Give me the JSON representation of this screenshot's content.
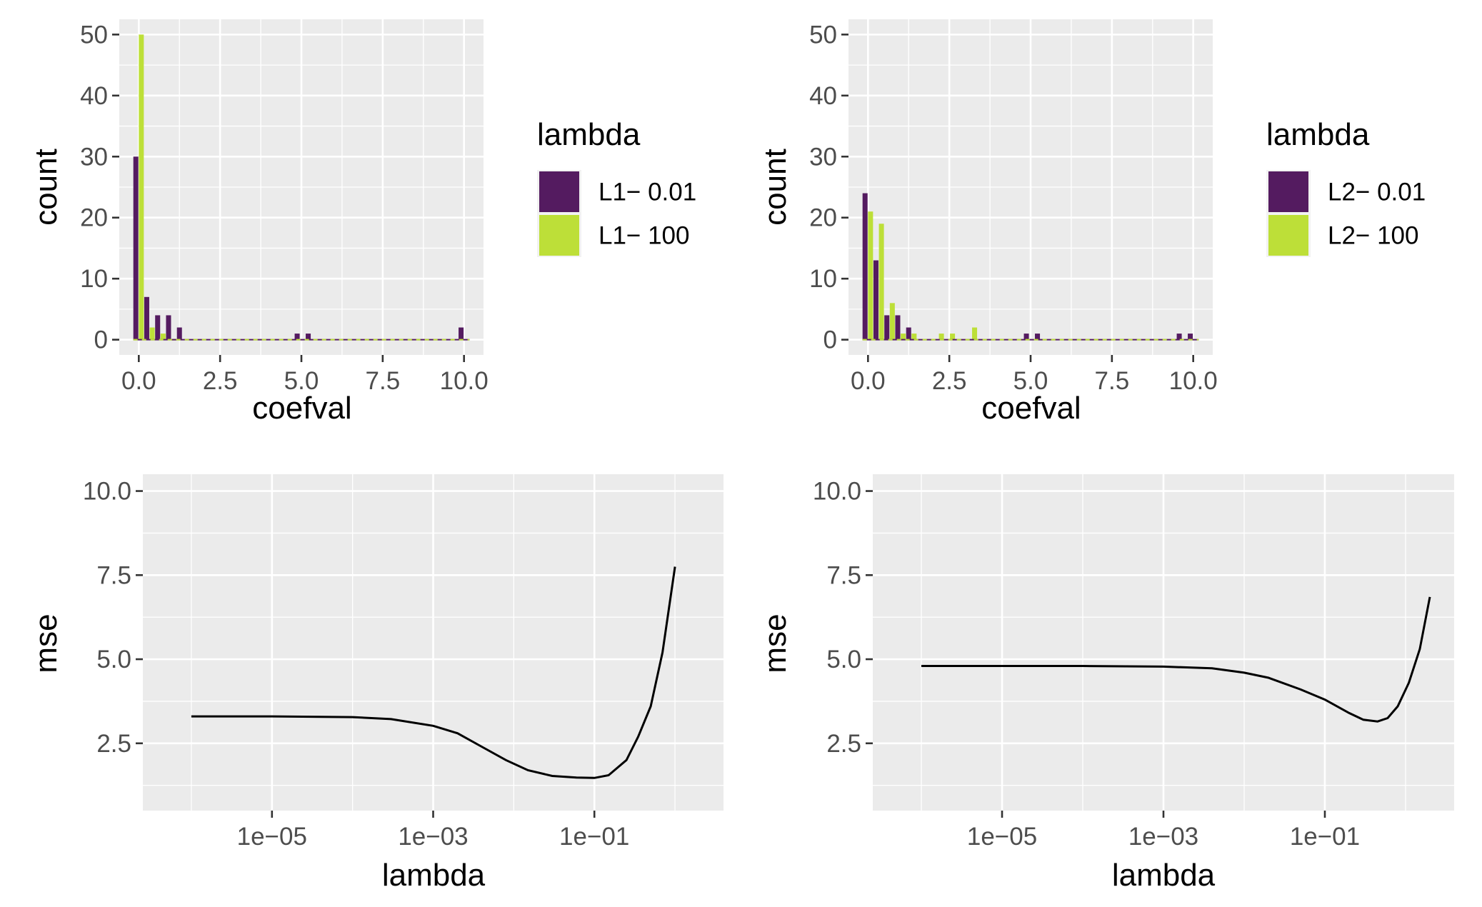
{
  "chart_data": [
    {
      "id": "hist-l1",
      "type": "bar",
      "xlabel": "coefval",
      "ylabel": "count",
      "xlim": [
        -0.6,
        10.6
      ],
      "ylim": [
        -2.5,
        52.5
      ],
      "xticks": [
        0,
        2.5,
        5,
        7.5,
        10
      ],
      "xtick_labels": [
        "0.0",
        "2.5",
        "5.0",
        "7.5",
        "10.0"
      ],
      "yticks": [
        0,
        10,
        20,
        30,
        40,
        50
      ],
      "ytick_labels": [
        "0",
        "10",
        "20",
        "30",
        "40",
        "50"
      ],
      "bin_width": 0.335,
      "grid": true,
      "legend": {
        "title": "lambda",
        "placement": "right"
      },
      "series": [
        {
          "name": "L1− 0.01",
          "color": "#541B60",
          "x": [
            0,
            0.335,
            0.67,
            1.005,
            1.34,
            4.96,
            5.3,
            10.0
          ],
          "values": [
            30,
            7,
            4,
            4,
            2,
            1,
            1,
            2
          ]
        },
        {
          "name": "L1− 100",
          "color": "#BDDF38",
          "x": [
            0,
            0.335,
            0.67,
            1.005
          ],
          "values": [
            50,
            2,
            1,
            0
          ]
        }
      ]
    },
    {
      "id": "hist-l2",
      "type": "bar",
      "xlabel": "coefval",
      "ylabel": "count",
      "xlim": [
        -0.6,
        10.6
      ],
      "ylim": [
        -2.5,
        52.5
      ],
      "xticks": [
        0,
        2.5,
        5,
        7.5,
        10
      ],
      "xtick_labels": [
        "0.0",
        "2.5",
        "5.0",
        "7.5",
        "10.0"
      ],
      "yticks": [
        0,
        10,
        20,
        30,
        40,
        50
      ],
      "ytick_labels": [
        "0",
        "10",
        "20",
        "30",
        "40",
        "50"
      ],
      "bin_width": 0.335,
      "grid": true,
      "legend": {
        "title": "lambda",
        "placement": "right"
      },
      "series": [
        {
          "name": "L2− 0.01",
          "color": "#541B60",
          "x": [
            0,
            0.335,
            0.67,
            1.005,
            1.34,
            4.96,
            5.3,
            9.66,
            10.0
          ],
          "values": [
            24,
            13,
            4,
            4,
            2,
            1,
            1,
            1,
            1
          ]
        },
        {
          "name": "L2− 100",
          "color": "#BDDF38",
          "x": [
            0,
            0.335,
            0.67,
            1.005,
            1.34,
            2.18,
            2.52,
            3.2
          ],
          "values": [
            21,
            19,
            6,
            1,
            1,
            1,
            1,
            2
          ]
        }
      ]
    },
    {
      "id": "mse-l1",
      "type": "line",
      "xlabel": "lambda",
      "ylabel": "mse",
      "x_scale": "log10",
      "xlim": [
        2.5e-07,
        4
      ],
      "ylim": [
        0.5,
        10.5
      ],
      "xticks": [
        1e-05,
        0.001,
        0.1
      ],
      "xtick_labels": [
        "1e−05",
        "1e−03",
        "1e−01"
      ],
      "yticks": [
        2.5,
        5.0,
        7.5,
        10.0
      ],
      "ytick_labels": [
        "2.5",
        "5.0",
        "7.5",
        "10.0"
      ],
      "grid": true,
      "series": [
        {
          "x": [
            1e-06,
            1e-05,
            0.0001,
            0.0003,
            0.001,
            0.002,
            0.004,
            0.008,
            0.015,
            0.03,
            0.06,
            0.1,
            0.15,
            0.25,
            0.35,
            0.5,
            0.7,
            1.0
          ],
          "values": [
            3.3,
            3.3,
            3.28,
            3.22,
            3.02,
            2.8,
            2.4,
            2.0,
            1.7,
            1.53,
            1.48,
            1.47,
            1.55,
            2.0,
            2.7,
            3.6,
            5.2,
            7.75
          ]
        }
      ]
    },
    {
      "id": "mse-l2",
      "type": "line",
      "xlabel": "lambda",
      "ylabel": "mse",
      "x_scale": "log10",
      "xlim": [
        2.5e-07,
        4
      ],
      "ylim": [
        0.5,
        10.5
      ],
      "xticks": [
        1e-05,
        0.001,
        0.1
      ],
      "xtick_labels": [
        "1e−05",
        "1e−03",
        "1e−01"
      ],
      "yticks": [
        2.5,
        5.0,
        7.5,
        10.0
      ],
      "ytick_labels": [
        "2.5",
        "5.0",
        "7.5",
        "10.0"
      ],
      "grid": true,
      "series": [
        {
          "x": [
            1e-06,
            1e-05,
            0.0001,
            0.001,
            0.004,
            0.01,
            0.02,
            0.05,
            0.1,
            0.2,
            0.3,
            0.45,
            0.6,
            0.8,
            1.1,
            1.5,
            2.0
          ],
          "values": [
            4.8,
            4.8,
            4.8,
            4.78,
            4.73,
            4.6,
            4.45,
            4.1,
            3.8,
            3.4,
            3.2,
            3.15,
            3.25,
            3.6,
            4.3,
            5.3,
            6.85
          ]
        }
      ]
    }
  ]
}
